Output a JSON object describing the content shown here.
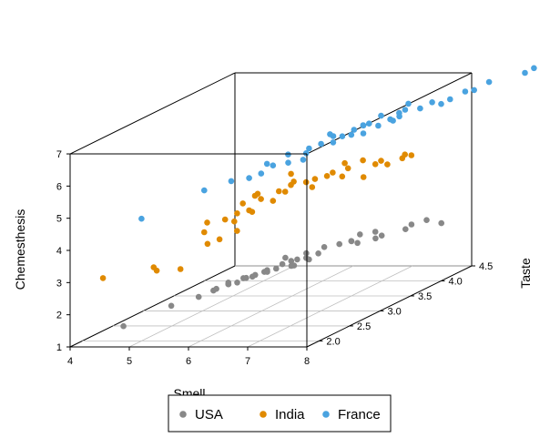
{
  "chart_data": {
    "type": "scatter3d",
    "title": "",
    "xlabel": "Smell",
    "ylabel": "Taste",
    "zlabel": "Chemesthesis",
    "xlim": [
      4,
      8
    ],
    "ylim": [
      1.8,
      4.5
    ],
    "zlim": [
      1,
      7
    ],
    "x_ticks": [
      "4",
      "5",
      "6",
      "7",
      "8"
    ],
    "y_ticks": [
      "2.0",
      "2.5",
      "3.0",
      "3.5",
      "4.0",
      "4.5"
    ],
    "z_ticks": [
      "1",
      "2",
      "3",
      "4",
      "5",
      "6",
      "7"
    ],
    "grid": "floor",
    "legend": {
      "position": "bottom",
      "boxed": true
    },
    "series": [
      {
        "name": "USA",
        "color": "#888888",
        "points": [
          [
            4.85,
            1.85,
            1.6
          ],
          [
            5.4,
            2.1,
            2.0
          ],
          [
            5.45,
            2.5,
            1.9
          ],
          [
            5.7,
            2.5,
            2.1
          ],
          [
            5.8,
            2.45,
            2.2
          ],
          [
            5.85,
            2.6,
            2.2
          ],
          [
            5.9,
            2.55,
            2.3
          ],
          [
            5.95,
            2.5,
            2.3
          ],
          [
            6.0,
            2.7,
            2.3
          ],
          [
            6.05,
            2.55,
            2.3
          ],
          [
            6.1,
            2.75,
            2.3
          ],
          [
            6.15,
            2.6,
            2.4
          ],
          [
            6.2,
            2.7,
            2.4
          ],
          [
            6.25,
            2.8,
            2.4
          ],
          [
            6.3,
            2.8,
            2.4
          ],
          [
            6.35,
            2.75,
            2.5
          ],
          [
            6.4,
            2.95,
            2.5
          ],
          [
            6.45,
            2.8,
            2.5
          ],
          [
            6.5,
            3.0,
            2.4
          ],
          [
            6.55,
            2.95,
            2.6
          ],
          [
            6.6,
            3.0,
            2.6
          ],
          [
            6.65,
            3.1,
            2.7
          ],
          [
            6.7,
            3.05,
            2.6
          ],
          [
            6.75,
            3.2,
            2.6
          ],
          [
            6.8,
            3.0,
            2.6
          ],
          [
            6.85,
            3.2,
            2.8
          ],
          [
            7.0,
            3.5,
            2.7
          ],
          [
            7.05,
            3.55,
            2.6
          ],
          [
            7.1,
            3.4,
            2.8
          ],
          [
            7.2,
            3.7,
            2.6
          ],
          [
            7.3,
            3.6,
            2.9
          ],
          [
            7.5,
            3.9,
            2.7
          ],
          [
            7.55,
            3.95,
            2.8
          ],
          [
            7.9,
            4.1,
            2.7
          ],
          [
            7.35,
            3.3,
            3.1
          ],
          [
            7.6,
            4.15,
            2.75
          ],
          [
            6.4,
            3.0,
            2.65
          ],
          [
            6.95,
            3.35,
            2.75
          ],
          [
            7.15,
            3.85,
            2.55
          ],
          [
            6.7,
            2.85,
            2.55
          ]
        ]
      },
      {
        "name": "India",
        "color": "#E08A00",
        "points": [
          [
            4.4,
            1.95,
            3.0
          ],
          [
            5.0,
            2.2,
            3.1
          ],
          [
            5.05,
            2.2,
            3.0
          ],
          [
            5.4,
            2.25,
            3.0
          ],
          [
            5.6,
            2.5,
            3.55
          ],
          [
            5.7,
            2.6,
            3.6
          ],
          [
            5.75,
            2.3,
            4.1
          ],
          [
            5.8,
            2.3,
            4.4
          ],
          [
            6.0,
            2.4,
            4.4
          ],
          [
            6.1,
            2.5,
            4.5
          ],
          [
            6.2,
            2.6,
            4.5
          ],
          [
            6.25,
            2.6,
            4.45
          ],
          [
            6.3,
            2.4,
            4.9
          ],
          [
            6.4,
            2.6,
            4.85
          ],
          [
            6.5,
            2.7,
            4.7
          ],
          [
            6.5,
            2.9,
            4.8
          ],
          [
            6.55,
            2.4,
            5.2
          ],
          [
            6.6,
            2.7,
            5.0
          ],
          [
            6.7,
            2.8,
            5.1
          ],
          [
            6.75,
            3.0,
            5.0
          ],
          [
            6.8,
            3.05,
            4.8
          ],
          [
            6.85,
            2.7,
            5.3
          ],
          [
            6.9,
            3.0,
            5.1
          ],
          [
            7.0,
            3.1,
            5.1
          ],
          [
            7.05,
            3.3,
            4.9
          ],
          [
            7.1,
            3.6,
            4.6
          ],
          [
            7.2,
            3.0,
            5.3
          ],
          [
            7.2,
            3.25,
            5.2
          ],
          [
            7.3,
            3.1,
            5.5
          ],
          [
            7.3,
            3.6,
            5.0
          ],
          [
            7.4,
            3.3,
            5.4
          ],
          [
            7.4,
            3.7,
            4.9
          ],
          [
            7.5,
            3.5,
            5.2
          ],
          [
            7.55,
            3.8,
            5.0
          ],
          [
            7.6,
            3.9,
            5.0
          ],
          [
            7.8,
            3.6,
            5.3
          ],
          [
            6.35,
            2.55,
            5.0
          ],
          [
            6.0,
            2.55,
            4.2
          ],
          [
            6.15,
            2.45,
            4.0
          ],
          [
            6.65,
            2.85,
            5.4
          ]
        ]
      },
      {
        "name": "France",
        "color": "#4AA3E0",
        "points": [
          [
            5.0,
            2.0,
            4.8
          ],
          [
            5.75,
            2.3,
            5.4
          ],
          [
            6.0,
            2.5,
            5.5
          ],
          [
            6.2,
            2.6,
            5.5
          ],
          [
            6.3,
            2.7,
            5.55
          ],
          [
            6.5,
            2.7,
            5.8
          ],
          [
            6.55,
            2.9,
            5.7
          ],
          [
            6.7,
            3.0,
            5.7
          ],
          [
            6.75,
            3.0,
            5.9
          ],
          [
            6.8,
            3.0,
            6.05
          ],
          [
            6.9,
            3.1,
            6.1
          ],
          [
            7.0,
            3.2,
            6.05
          ],
          [
            7.0,
            3.35,
            6.1
          ],
          [
            7.05,
            3.1,
            6.4
          ],
          [
            7.1,
            3.4,
            6.1
          ],
          [
            7.2,
            3.5,
            6.05
          ],
          [
            7.25,
            3.3,
            6.35
          ],
          [
            7.3,
            3.4,
            6.4
          ],
          [
            7.35,
            3.6,
            6.2
          ],
          [
            7.4,
            3.4,
            6.45
          ],
          [
            7.45,
            3.7,
            6.3
          ],
          [
            7.5,
            3.5,
            6.6
          ],
          [
            7.5,
            3.8,
            6.3
          ],
          [
            7.6,
            3.7,
            6.5
          ],
          [
            7.7,
            3.7,
            6.6
          ],
          [
            7.8,
            3.85,
            6.5
          ],
          [
            7.9,
            3.95,
            6.6
          ],
          [
            8.0,
            4.0,
            6.5
          ],
          [
            8.1,
            4.05,
            6.6
          ],
          [
            8.2,
            4.2,
            6.7
          ],
          [
            8.3,
            4.25,
            6.7
          ],
          [
            8.5,
            4.3,
            6.9
          ],
          [
            8.9,
            4.5,
            7.0
          ],
          [
            9.0,
            4.55,
            7.1
          ],
          [
            7.55,
            3.9,
            6.6
          ],
          [
            6.6,
            2.85,
            6.0
          ],
          [
            7.65,
            3.55,
            6.4
          ],
          [
            6.95,
            3.25,
            6.2
          ],
          [
            7.15,
            3.55,
            6.25
          ],
          [
            6.45,
            2.65,
            5.9
          ]
        ]
      }
    ]
  }
}
